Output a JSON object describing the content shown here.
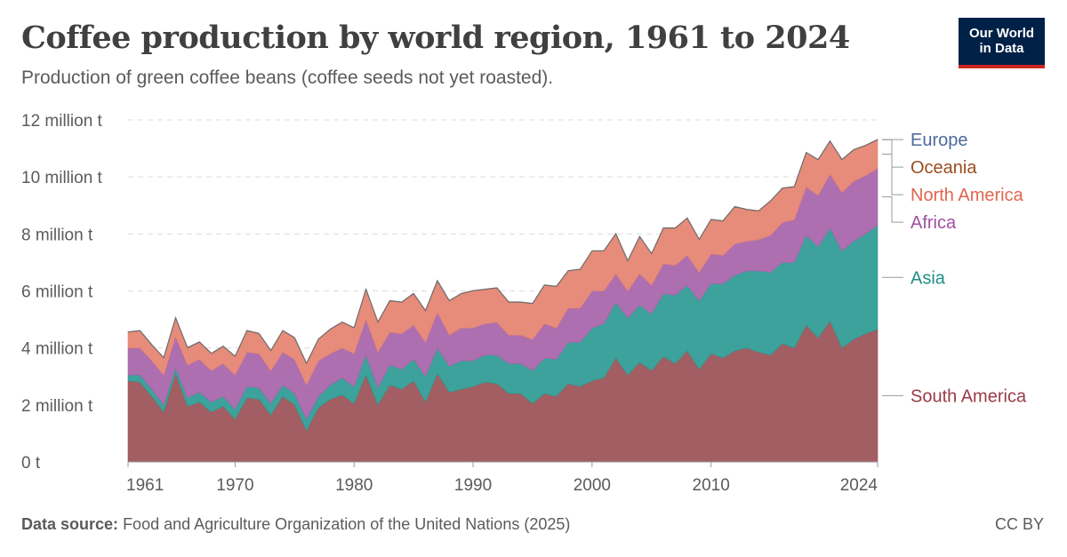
{
  "header": {
    "title": "Coffee production by world region, 1961 to 2024",
    "subtitle": "Production of green coffee beans (coffee seeds not yet roasted)."
  },
  "logo": {
    "line1": "Our World",
    "line2": "in Data",
    "bg_color": "#002147",
    "accent_color": "#ce261e"
  },
  "footer": {
    "source_label": "Data source:",
    "source_text": "Food and Agriculture Organization of the United Nations (2025)",
    "license": "CC BY"
  },
  "chart_data": {
    "type": "area",
    "stacked": true,
    "title": "Coffee production by world region, 1961 to 2024",
    "unit": "t",
    "x_start": 1961,
    "x_end": 2024,
    "ylim": [
      0,
      12000000
    ],
    "y_ticks": [
      {
        "value": 0,
        "label": "0 t"
      },
      {
        "value": 2000000,
        "label": "2 million t"
      },
      {
        "value": 4000000,
        "label": "4 million t"
      },
      {
        "value": 6000000,
        "label": "6 million t"
      },
      {
        "value": 8000000,
        "label": "8 million t"
      },
      {
        "value": 10000000,
        "label": "10 million t"
      },
      {
        "value": 12000000,
        "label": "12 million t"
      }
    ],
    "x_ticks": [
      {
        "value": 1961,
        "label": "1961"
      },
      {
        "value": 1970,
        "label": "1970"
      },
      {
        "value": 1980,
        "label": "1980"
      },
      {
        "value": 1990,
        "label": "1990"
      },
      {
        "value": 2000,
        "label": "2000"
      },
      {
        "value": 2010,
        "label": "2010"
      },
      {
        "value": 2024,
        "label": "2024"
      }
    ],
    "grid": "horizontal dashed",
    "legend_position": "right",
    "x": [
      1961,
      1962,
      1963,
      1964,
      1965,
      1966,
      1967,
      1968,
      1969,
      1970,
      1971,
      1972,
      1973,
      1974,
      1975,
      1976,
      1977,
      1978,
      1979,
      1980,
      1981,
      1982,
      1983,
      1984,
      1985,
      1986,
      1987,
      1988,
      1989,
      1990,
      1991,
      1992,
      1993,
      1994,
      1995,
      1996,
      1997,
      1998,
      1999,
      2000,
      2001,
      2002,
      2003,
      2004,
      2005,
      2006,
      2007,
      2008,
      2009,
      2010,
      2011,
      2012,
      2013,
      2014,
      2015,
      2016,
      2017,
      2018,
      2019,
      2020,
      2021,
      2022,
      2023,
      2024
    ],
    "series": [
      {
        "name": "South America",
        "color": "#9a5055",
        "values": [
          2850000,
          2800000,
          2300000,
          1750000,
          3100000,
          1950000,
          2100000,
          1750000,
          1950000,
          1500000,
          2250000,
          2200000,
          1650000,
          2300000,
          2000000,
          1100000,
          1900000,
          2200000,
          2350000,
          2050000,
          3050000,
          2000000,
          2700000,
          2550000,
          2850000,
          2100000,
          3100000,
          2450000,
          2550000,
          2650000,
          2800000,
          2750000,
          2400000,
          2400000,
          2050000,
          2400000,
          2300000,
          2750000,
          2650000,
          2850000,
          2950000,
          3650000,
          3050000,
          3500000,
          3200000,
          3700000,
          3450000,
          3900000,
          3250000,
          3800000,
          3650000,
          3900000,
          4000000,
          3850000,
          3750000,
          4150000,
          4000000,
          4800000,
          4350000,
          4950000,
          4000000,
          4300000,
          4500000,
          4650000
        ]
      },
      {
        "name": "Asia",
        "color": "#2c9a92",
        "values": [
          200000,
          250000,
          250000,
          250000,
          200000,
          300000,
          350000,
          350000,
          350000,
          350000,
          400000,
          400000,
          400000,
          400000,
          400000,
          400000,
          400000,
          500000,
          600000,
          600000,
          700000,
          600000,
          700000,
          700000,
          750000,
          900000,
          900000,
          900000,
          1000000,
          900000,
          950000,
          1000000,
          1050000,
          1050000,
          1150000,
          1250000,
          1300000,
          1450000,
          1550000,
          1850000,
          1900000,
          1950000,
          2000000,
          2000000,
          2000000,
          2200000,
          2400000,
          2300000,
          2400000,
          2450000,
          2600000,
          2650000,
          2700000,
          2850000,
          2900000,
          2850000,
          3000000,
          3150000,
          3200000,
          3250000,
          3400000,
          3450000,
          3500000,
          3650000
        ]
      },
      {
        "name": "Africa",
        "color": "#a763a9",
        "values": [
          950000,
          950000,
          1000000,
          1050000,
          1100000,
          1150000,
          1150000,
          1100000,
          1150000,
          1200000,
          1200000,
          1200000,
          1150000,
          1150000,
          1200000,
          1200000,
          1250000,
          1100000,
          1050000,
          1150000,
          1250000,
          1250000,
          1150000,
          1250000,
          1200000,
          1200000,
          1250000,
          1100000,
          1150000,
          1150000,
          1100000,
          1150000,
          1000000,
          1000000,
          1100000,
          1200000,
          1100000,
          1200000,
          1200000,
          1300000,
          1150000,
          1000000,
          950000,
          1100000,
          1000000,
          1050000,
          1050000,
          1050000,
          1000000,
          1050000,
          1000000,
          1100000,
          1050000,
          1100000,
          1300000,
          1400000,
          1500000,
          1700000,
          1800000,
          1900000,
          2050000,
          2100000,
          2050000,
          2000000
        ]
      },
      {
        "name": "North America",
        "color": "#e5826f",
        "values": [
          550000,
          600000,
          550000,
          600000,
          650000,
          600000,
          600000,
          600000,
          600000,
          650000,
          750000,
          700000,
          700000,
          750000,
          750000,
          750000,
          750000,
          850000,
          900000,
          900000,
          1050000,
          1050000,
          1100000,
          1100000,
          1100000,
          1100000,
          1100000,
          1200000,
          1200000,
          1300000,
          1200000,
          1200000,
          1150000,
          1150000,
          1250000,
          1350000,
          1450000,
          1300000,
          1350000,
          1400000,
          1400000,
          1400000,
          1050000,
          1300000,
          1100000,
          1250000,
          1300000,
          1300000,
          1150000,
          1200000,
          1200000,
          1300000,
          1100000,
          1000000,
          1200000,
          1200000,
          1150000,
          1200000,
          1250000,
          1150000,
          1150000,
          1100000,
          1050000,
          1000000
        ]
      },
      {
        "name": "Oceania",
        "color": "#9a5129",
        "values": [
          10000,
          10000,
          10000,
          10000,
          10000,
          10000,
          10000,
          10000,
          10000,
          10000,
          10000,
          10000,
          10000,
          10000,
          10000,
          10000,
          10000,
          10000,
          10000,
          10000,
          10000,
          10000,
          10000,
          10000,
          10000,
          10000,
          10000,
          10000,
          10000,
          10000,
          10000,
          10000,
          10000,
          10000,
          10000,
          10000,
          10000,
          10000,
          10000,
          10000,
          10000,
          10000,
          10000,
          10000,
          10000,
          10000,
          10000,
          10000,
          10000,
          10000,
          10000,
          10000,
          10000,
          10000,
          10000,
          10000,
          10000,
          10000,
          10000,
          10000,
          10000,
          10000,
          10000,
          10000
        ]
      },
      {
        "name": "Europe",
        "color": "#4c6a9c",
        "values": [
          0,
          0,
          0,
          0,
          0,
          0,
          0,
          0,
          0,
          0,
          0,
          0,
          0,
          0,
          0,
          0,
          0,
          0,
          0,
          0,
          0,
          0,
          0,
          0,
          0,
          0,
          0,
          0,
          0,
          0,
          0,
          0,
          0,
          0,
          0,
          0,
          0,
          0,
          0,
          0,
          0,
          0,
          0,
          0,
          0,
          0,
          0,
          0,
          0,
          0,
          0,
          0,
          0,
          0,
          0,
          0,
          0,
          0,
          0,
          0,
          0,
          0,
          0,
          0
        ]
      }
    ]
  }
}
